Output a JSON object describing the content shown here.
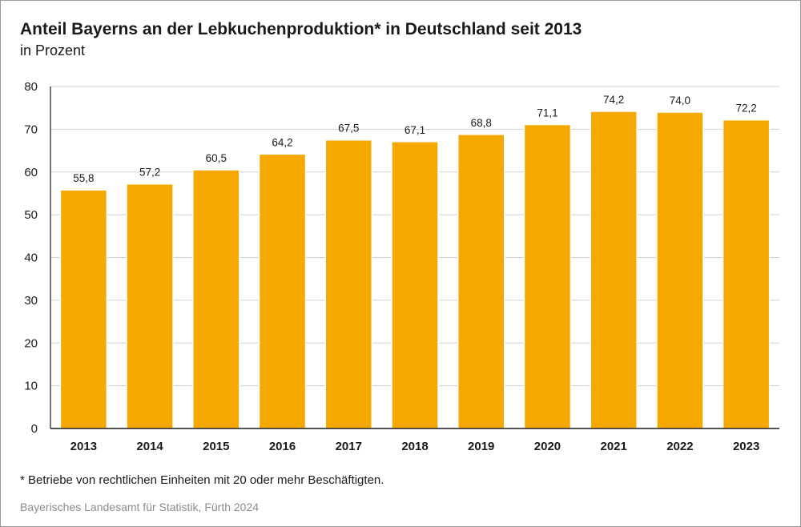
{
  "title": "Anteil Bayerns an der Lebkuchenproduktion* in Deutschland seit 2013",
  "subtitle": "in Prozent",
  "footnote": "* Betriebe von rechtlichen Einheiten mit 20 oder mehr Beschäftigten.",
  "source": "Bayerisches Landesamt für Statistik, Fürth 2024",
  "colors": {
    "bar": "#F5A800",
    "grid": "#d0d0d0",
    "axis": "#1a1a1a"
  },
  "chart_data": {
    "type": "bar",
    "title": "Anteil Bayerns an der Lebkuchenproduktion* in Deutschland seit 2013",
    "subtitle": "in Prozent",
    "xlabel": "",
    "ylabel": "",
    "ylim": [
      0,
      80
    ],
    "yticks": [
      0,
      10,
      20,
      30,
      40,
      50,
      60,
      70,
      80
    ],
    "grid": true,
    "categories": [
      "2013",
      "2014",
      "2015",
      "2016",
      "2017",
      "2018",
      "2019",
      "2020",
      "2021",
      "2022",
      "2023"
    ],
    "values": [
      55.8,
      57.2,
      60.5,
      64.2,
      67.5,
      67.1,
      68.8,
      71.1,
      74.2,
      74.0,
      72.2
    ],
    "value_labels": [
      "55,8",
      "57,2",
      "60,5",
      "64,2",
      "67,5",
      "67,1",
      "68,8",
      "71,1",
      "74,2",
      "74,0",
      "72,2"
    ]
  }
}
